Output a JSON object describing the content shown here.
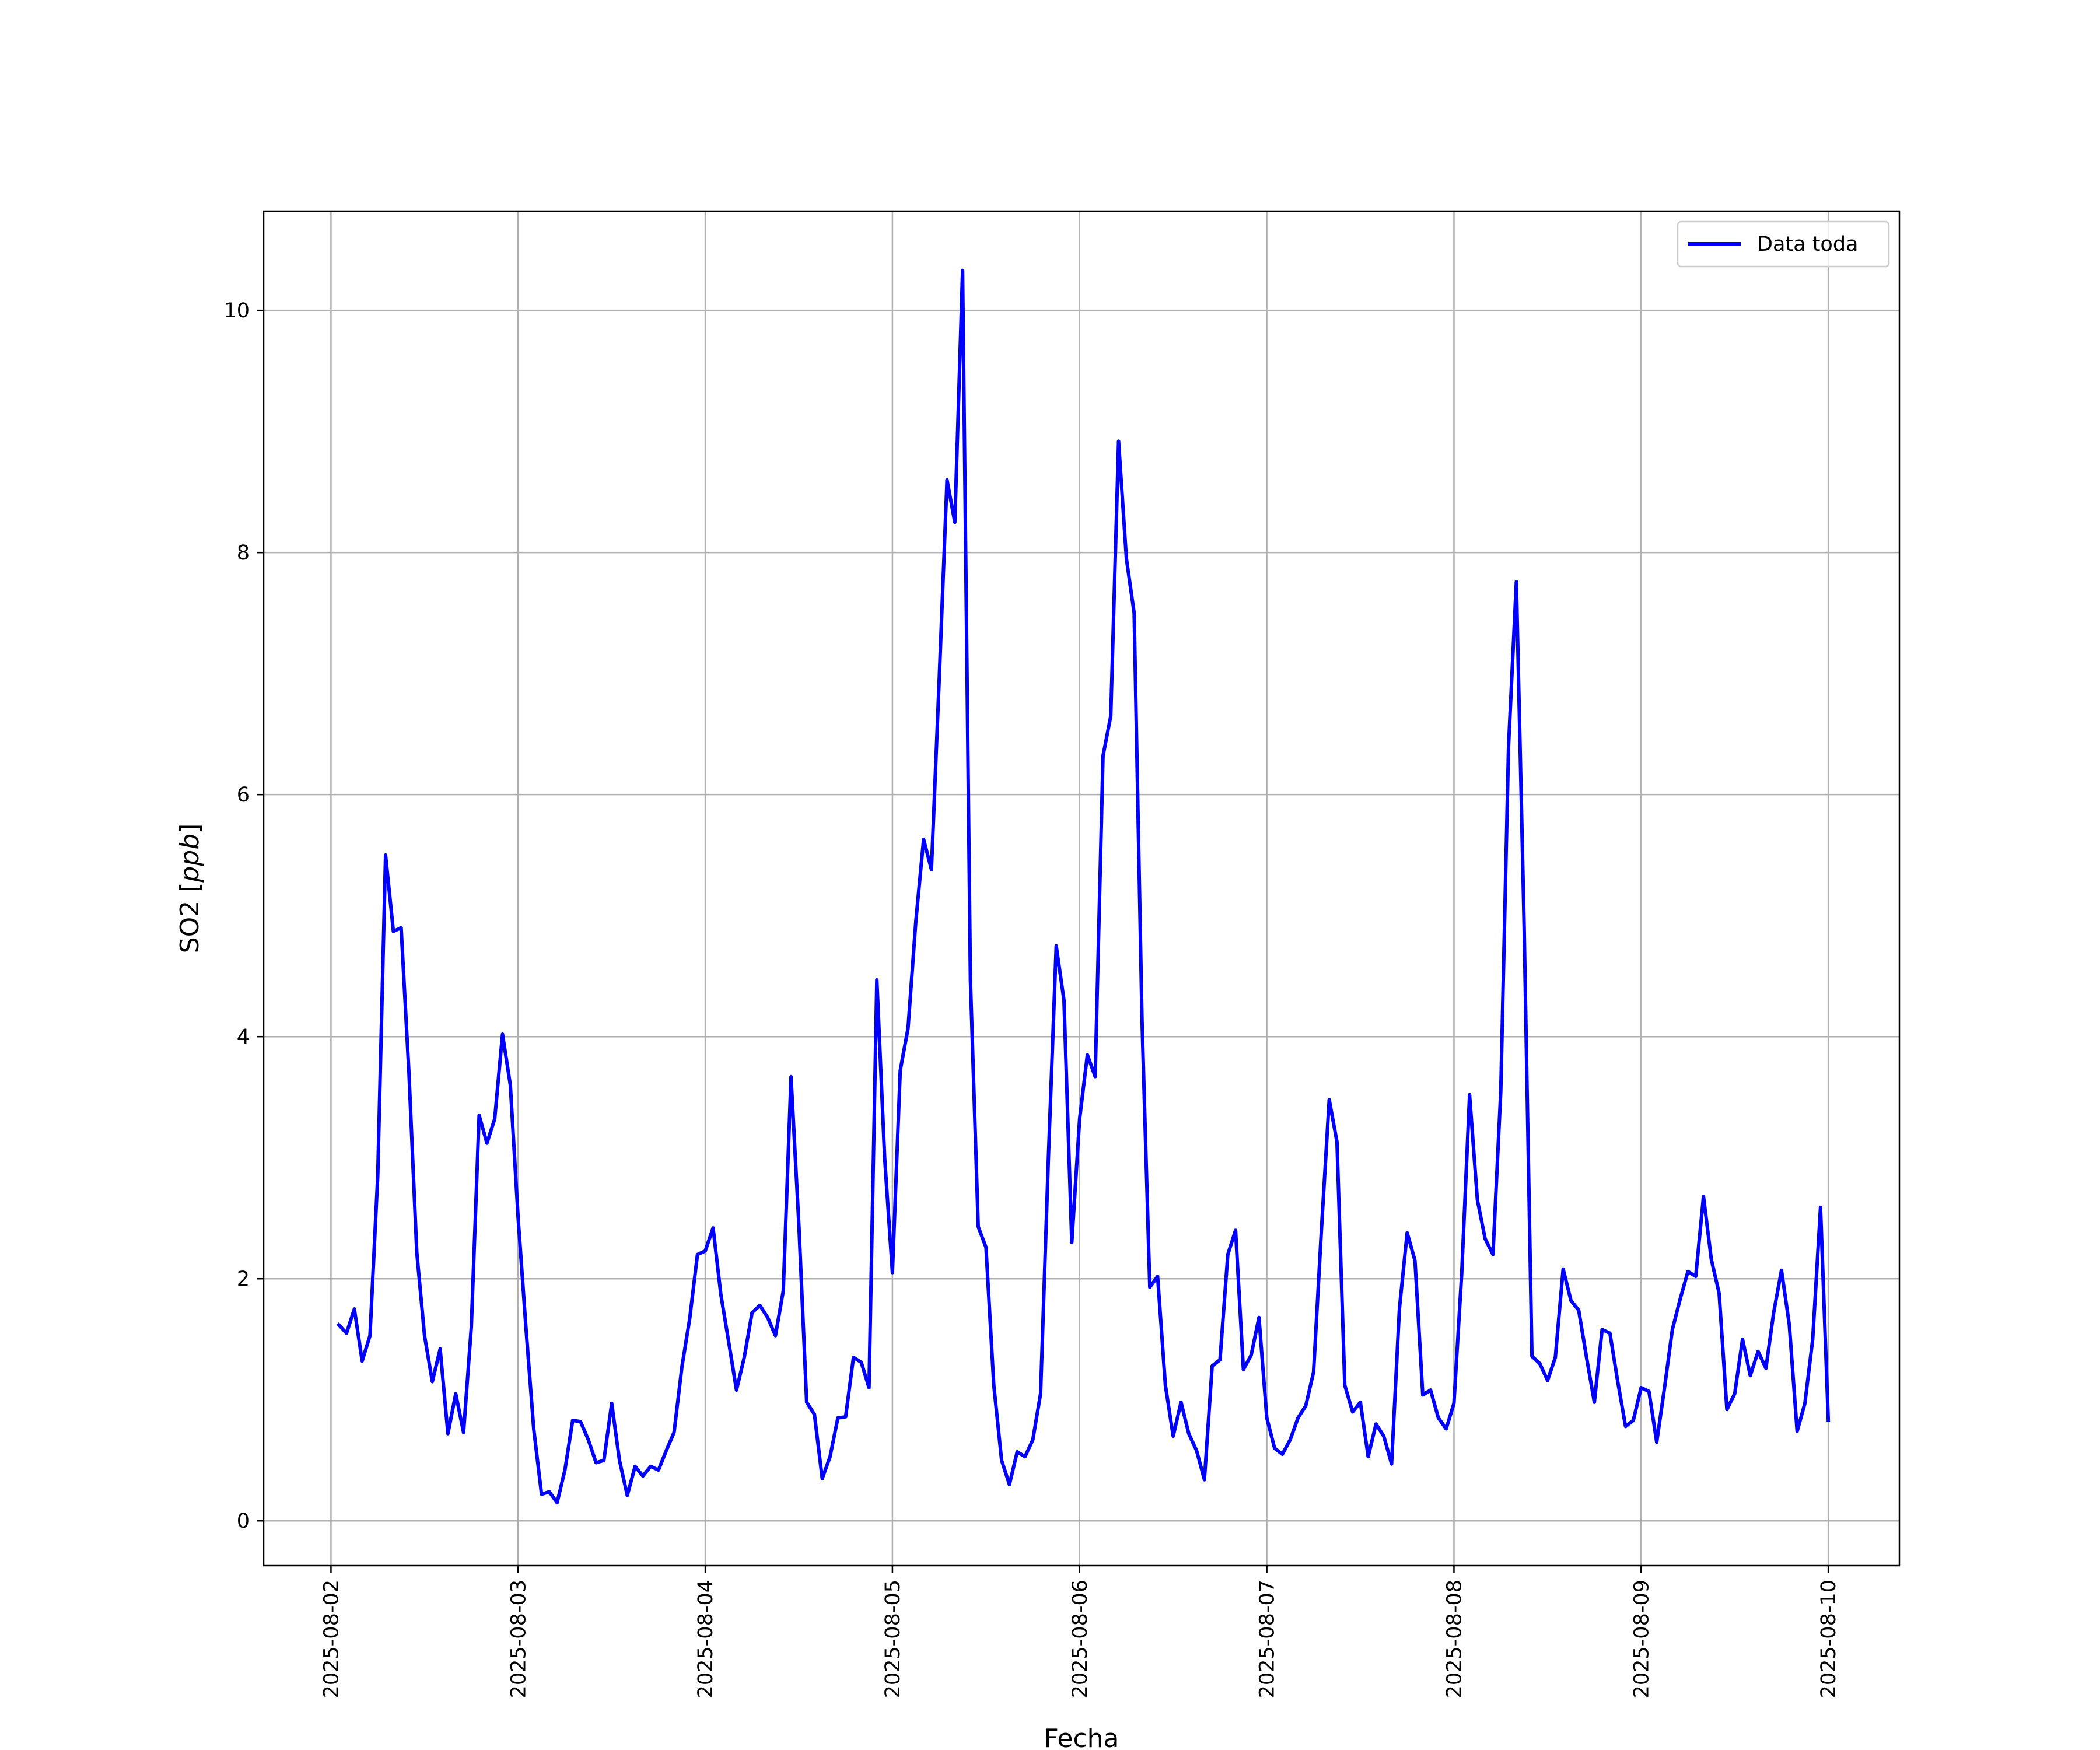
{
  "chart_data": {
    "type": "line",
    "title": "",
    "xlabel": "Fecha",
    "ylabel": "SO2 [ppb]",
    "ylabel_plain": "SO2 [",
    "ylabel_unit": "ppb",
    "ylabel_close": "]",
    "xlim": [
      "2025-08-01 15:22",
      "2025-08-10 09:07"
    ],
    "ylim": [
      -0.37,
      10.82
    ],
    "grid": true,
    "legend_position": "top-right",
    "x_ticks": [
      "2025-08-02",
      "2025-08-03",
      "2025-08-04",
      "2025-08-05",
      "2025-08-06",
      "2025-08-07",
      "2025-08-08",
      "2025-08-09",
      "2025-08-10"
    ],
    "y_ticks": [
      0,
      2,
      4,
      6,
      8,
      10
    ],
    "series": [
      {
        "name": "Data toda",
        "color": "#0000ff",
        "x": [
          "2025-08-02 01:00",
          "2025-08-02 02:00",
          "2025-08-02 03:00",
          "2025-08-02 04:00",
          "2025-08-02 05:00",
          "2025-08-02 06:00",
          "2025-08-02 07:00",
          "2025-08-02 08:00",
          "2025-08-02 09:00",
          "2025-08-02 10:00",
          "2025-08-02 11:00",
          "2025-08-02 12:00",
          "2025-08-02 13:00",
          "2025-08-02 14:00",
          "2025-08-02 15:00",
          "2025-08-02 16:00",
          "2025-08-02 17:00",
          "2025-08-02 18:00",
          "2025-08-02 19:00",
          "2025-08-02 20:00",
          "2025-08-02 21:00",
          "2025-08-02 22:00",
          "2025-08-02 23:00",
          "2025-08-03 00:00",
          "2025-08-03 01:00",
          "2025-08-03 02:00",
          "2025-08-03 03:00",
          "2025-08-03 04:00",
          "2025-08-03 05:00",
          "2025-08-03 06:00",
          "2025-08-03 07:00",
          "2025-08-03 08:00",
          "2025-08-03 09:00",
          "2025-08-03 10:00",
          "2025-08-03 11:00",
          "2025-08-03 12:00",
          "2025-08-03 13:00",
          "2025-08-03 14:00",
          "2025-08-03 15:00",
          "2025-08-03 16:00",
          "2025-08-03 17:00",
          "2025-08-03 18:00",
          "2025-08-03 19:00",
          "2025-08-03 20:00",
          "2025-08-03 21:00",
          "2025-08-03 22:00",
          "2025-08-03 23:00",
          "2025-08-04 00:00",
          "2025-08-04 01:00",
          "2025-08-04 02:00",
          "2025-08-04 03:00",
          "2025-08-04 04:00",
          "2025-08-04 05:00",
          "2025-08-04 06:00",
          "2025-08-04 07:00",
          "2025-08-04 08:00",
          "2025-08-04 09:00",
          "2025-08-04 10:00",
          "2025-08-04 11:00",
          "2025-08-04 12:00",
          "2025-08-04 13:00",
          "2025-08-04 14:00",
          "2025-08-04 15:00",
          "2025-08-04 16:00",
          "2025-08-04 17:00",
          "2025-08-04 18:00",
          "2025-08-04 19:00",
          "2025-08-04 20:00",
          "2025-08-04 21:00",
          "2025-08-04 22:00",
          "2025-08-04 23:00",
          "2025-08-05 00:00",
          "2025-08-05 01:00",
          "2025-08-05 02:00",
          "2025-08-05 03:00",
          "2025-08-05 04:00",
          "2025-08-05 05:00",
          "2025-08-05 06:00",
          "2025-08-05 07:00",
          "2025-08-05 08:00",
          "2025-08-05 09:00",
          "2025-08-05 10:00",
          "2025-08-05 11:00",
          "2025-08-05 12:00",
          "2025-08-05 13:00",
          "2025-08-05 14:00",
          "2025-08-05 15:00",
          "2025-08-05 16:00",
          "2025-08-05 17:00",
          "2025-08-05 18:00",
          "2025-08-05 19:00",
          "2025-08-05 20:00",
          "2025-08-05 21:00",
          "2025-08-05 22:00",
          "2025-08-05 23:00",
          "2025-08-06 00:00",
          "2025-08-06 01:00",
          "2025-08-06 02:00",
          "2025-08-06 03:00",
          "2025-08-06 04:00",
          "2025-08-06 05:00",
          "2025-08-06 06:00",
          "2025-08-06 07:00",
          "2025-08-06 08:00",
          "2025-08-06 09:00",
          "2025-08-06 10:00",
          "2025-08-06 11:00",
          "2025-08-06 12:00",
          "2025-08-06 13:00",
          "2025-08-06 14:00",
          "2025-08-06 15:00",
          "2025-08-06 16:00",
          "2025-08-06 17:00",
          "2025-08-06 18:00",
          "2025-08-06 19:00",
          "2025-08-06 20:00",
          "2025-08-06 21:00",
          "2025-08-06 22:00",
          "2025-08-06 23:00",
          "2025-08-07 00:00",
          "2025-08-07 01:00",
          "2025-08-07 02:00",
          "2025-08-07 03:00",
          "2025-08-07 04:00",
          "2025-08-07 05:00",
          "2025-08-07 06:00",
          "2025-08-07 07:00",
          "2025-08-07 08:00",
          "2025-08-07 09:00",
          "2025-08-07 10:00",
          "2025-08-07 11:00",
          "2025-08-07 12:00",
          "2025-08-07 13:00",
          "2025-08-07 14:00",
          "2025-08-07 15:00",
          "2025-08-07 16:00",
          "2025-08-07 17:00",
          "2025-08-07 18:00",
          "2025-08-07 19:00",
          "2025-08-07 20:00",
          "2025-08-07 21:00",
          "2025-08-07 22:00",
          "2025-08-07 23:00",
          "2025-08-08 00:00",
          "2025-08-08 01:00",
          "2025-08-08 02:00",
          "2025-08-08 03:00",
          "2025-08-08 04:00",
          "2025-08-08 05:00",
          "2025-08-08 06:00",
          "2025-08-08 07:00",
          "2025-08-08 08:00",
          "2025-08-08 09:00",
          "2025-08-08 10:00",
          "2025-08-08 11:00",
          "2025-08-08 12:00",
          "2025-08-08 13:00",
          "2025-08-08 14:00",
          "2025-08-08 15:00",
          "2025-08-08 16:00",
          "2025-08-08 17:00",
          "2025-08-08 18:00",
          "2025-08-08 19:00",
          "2025-08-08 20:00",
          "2025-08-08 21:00",
          "2025-08-08 22:00",
          "2025-08-08 23:00",
          "2025-08-09 00:00",
          "2025-08-09 01:00",
          "2025-08-09 02:00",
          "2025-08-09 03:00",
          "2025-08-09 04:00",
          "2025-08-09 05:00",
          "2025-08-09 06:00",
          "2025-08-09 07:00",
          "2025-08-09 08:00",
          "2025-08-09 09:00",
          "2025-08-09 10:00",
          "2025-08-09 11:00",
          "2025-08-09 12:00",
          "2025-08-09 13:00",
          "2025-08-09 14:00",
          "2025-08-09 15:00",
          "2025-08-09 16:00",
          "2025-08-09 17:00",
          "2025-08-09 18:00",
          "2025-08-09 19:00",
          "2025-08-09 20:00",
          "2025-08-09 21:00",
          "2025-08-09 22:00",
          "2025-08-09 23:00",
          "2025-08-10 00:00"
        ],
        "y": [
          1.62,
          1.55,
          1.75,
          1.32,
          1.53,
          2.85,
          5.5,
          4.87,
          4.9,
          3.7,
          2.22,
          1.53,
          1.15,
          1.42,
          0.72,
          1.05,
          0.73,
          1.6,
          3.35,
          3.12,
          3.32,
          4.02,
          3.6,
          2.5,
          1.6,
          0.76,
          0.22,
          0.24,
          0.15,
          0.42,
          0.83,
          0.82,
          0.67,
          0.48,
          0.5,
          0.97,
          0.5,
          0.21,
          0.45,
          0.37,
          0.45,
          0.42,
          0.58,
          0.73,
          1.27,
          1.67,
          2.2,
          2.23,
          2.42,
          1.87,
          1.48,
          1.08,
          1.35,
          1.72,
          1.78,
          1.68,
          1.53,
          1.9,
          3.67,
          2.45,
          0.98,
          0.88,
          0.35,
          0.53,
          0.85,
          0.86,
          1.35,
          1.31,
          1.1,
          4.47,
          3.0,
          2.05,
          3.72,
          4.07,
          4.95,
          5.63,
          5.38,
          6.95,
          8.6,
          8.25,
          10.33,
          4.47,
          2.43,
          2.26,
          1.12,
          0.5,
          0.3,
          0.57,
          0.53,
          0.67,
          1.05,
          3.0,
          4.75,
          4.3,
          2.3,
          3.32,
          3.85,
          3.67,
          6.32,
          6.65,
          8.92,
          7.95,
          7.5,
          4.15,
          1.93,
          2.02,
          1.12,
          0.7,
          0.98,
          0.72,
          0.58,
          0.34,
          1.28,
          1.33,
          2.2,
          2.4,
          1.25,
          1.37,
          1.68,
          0.85,
          0.6,
          0.55,
          0.67,
          0.85,
          0.95,
          1.23,
          2.4,
          3.48,
          3.13,
          1.12,
          0.9,
          0.98,
          0.53,
          0.8,
          0.7,
          0.47,
          1.75,
          2.38,
          2.15,
          1.04,
          1.08,
          0.85,
          0.76,
          0.97,
          2.05,
          3.52,
          2.65,
          2.33,
          2.2,
          3.55,
          6.4,
          7.76,
          4.9,
          1.36,
          1.3,
          1.16,
          1.35,
          2.08,
          1.82,
          1.74,
          1.35,
          0.98,
          1.58,
          1.55,
          1.15,
          0.78,
          0.83,
          1.1,
          1.07,
          0.65,
          1.1,
          1.58,
          1.83,
          2.06,
          2.02,
          2.68,
          2.16,
          1.88,
          0.92,
          1.05,
          1.5,
          1.2,
          1.4,
          1.26,
          1.72,
          2.07,
          1.62,
          0.74,
          0.97,
          1.5,
          2.59,
          0.83
        ]
      }
    ]
  }
}
